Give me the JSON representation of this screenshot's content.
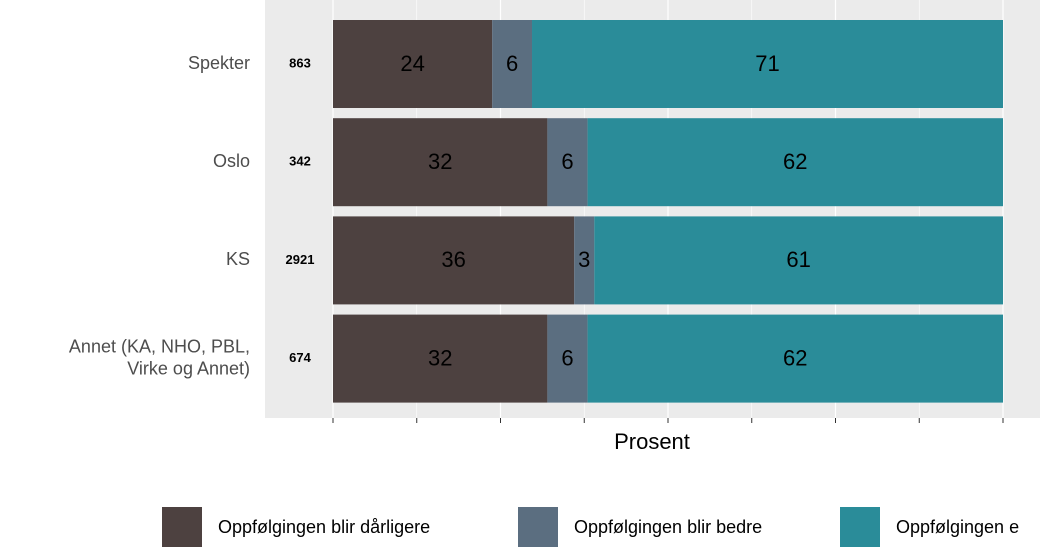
{
  "chart_data": {
    "type": "stacked-barh",
    "stack": "fill",
    "x_label": "Prosent",
    "categories": [
      "Spekter",
      "Oslo",
      "KS",
      "Annet (KA, NHO, PBL,\nVirke og Annet)"
    ],
    "counts": [
      "863",
      "342",
      "2921",
      "674"
    ],
    "series": [
      {
        "name": "Oppfølgingen blir dårligere",
        "color": "#4d4140",
        "values": [
          24,
          32,
          36,
          32
        ]
      },
      {
        "name": "Oppfølgingen blir bedre",
        "color": "#5b6e80",
        "values": [
          6,
          6,
          3,
          6
        ]
      },
      {
        "name": "Oppfølgingen e",
        "color": "#2a8c99",
        "values": [
          71,
          62,
          61,
          62
        ]
      }
    ],
    "xlim": [
      0,
      100
    ],
    "xticks": [
      0,
      12.5,
      25,
      37.5,
      50,
      62.5,
      75,
      87.5,
      100
    ],
    "grid": true,
    "legend": "bottom"
  }
}
